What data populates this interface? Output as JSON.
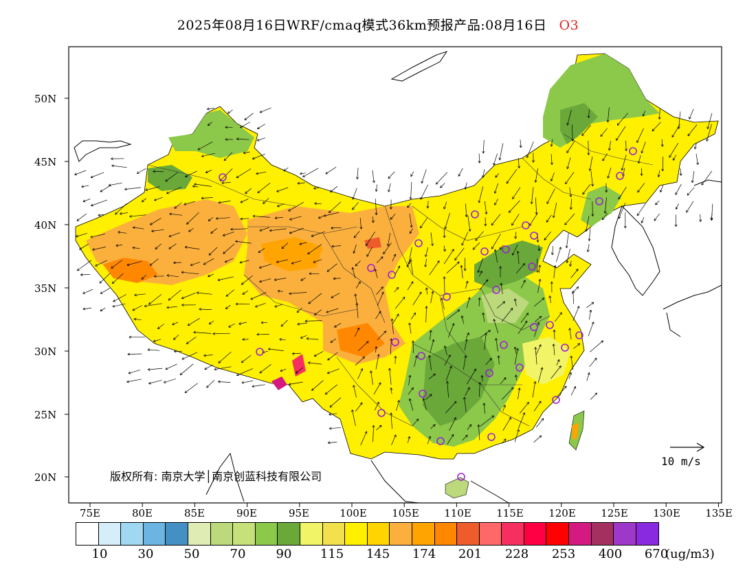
{
  "title": {
    "text": "2025年08月16日WRF/cmaq模式36km预报产品:08月16日",
    "species": "O3"
  },
  "map": {
    "lat_labels": [
      "50N",
      "45N",
      "40N",
      "35N",
      "30N",
      "25N",
      "20N"
    ],
    "lon_labels": [
      "75E",
      "80E",
      "85E",
      "90E",
      "95E",
      "100E",
      "105E",
      "110E",
      "115E",
      "120E",
      "125E",
      "130E",
      "135E"
    ],
    "wind_scale_label": "10 m/s",
    "copyright": "版权所有: 南京大学│南京创蓝科技有限公司",
    "frame_color": "#000000"
  },
  "colorbar": {
    "colors": [
      "#ffffff",
      "#d6eefa",
      "#a0d8f2",
      "#6cb4e2",
      "#4490c4",
      "#dfecb4",
      "#bcd97c",
      "#c6e17a",
      "#8cc84a",
      "#6aa83a",
      "#f1f466",
      "#f2e04c",
      "#fff000",
      "#ffd400",
      "#fbb03e",
      "#ffa400",
      "#ff8800",
      "#ef5c2c",
      "#ff6868",
      "#f53060",
      "#ff0044",
      "#ff0000",
      "#d41a80",
      "#a43060",
      "#9e38c8",
      "#8a2ae0"
    ],
    "labels": [
      "10",
      "30",
      "50",
      "70",
      "90",
      "115",
      "145",
      "174",
      "201",
      "228",
      "253",
      "400",
      "670"
    ],
    "unit": "(ug/m3)"
  }
}
